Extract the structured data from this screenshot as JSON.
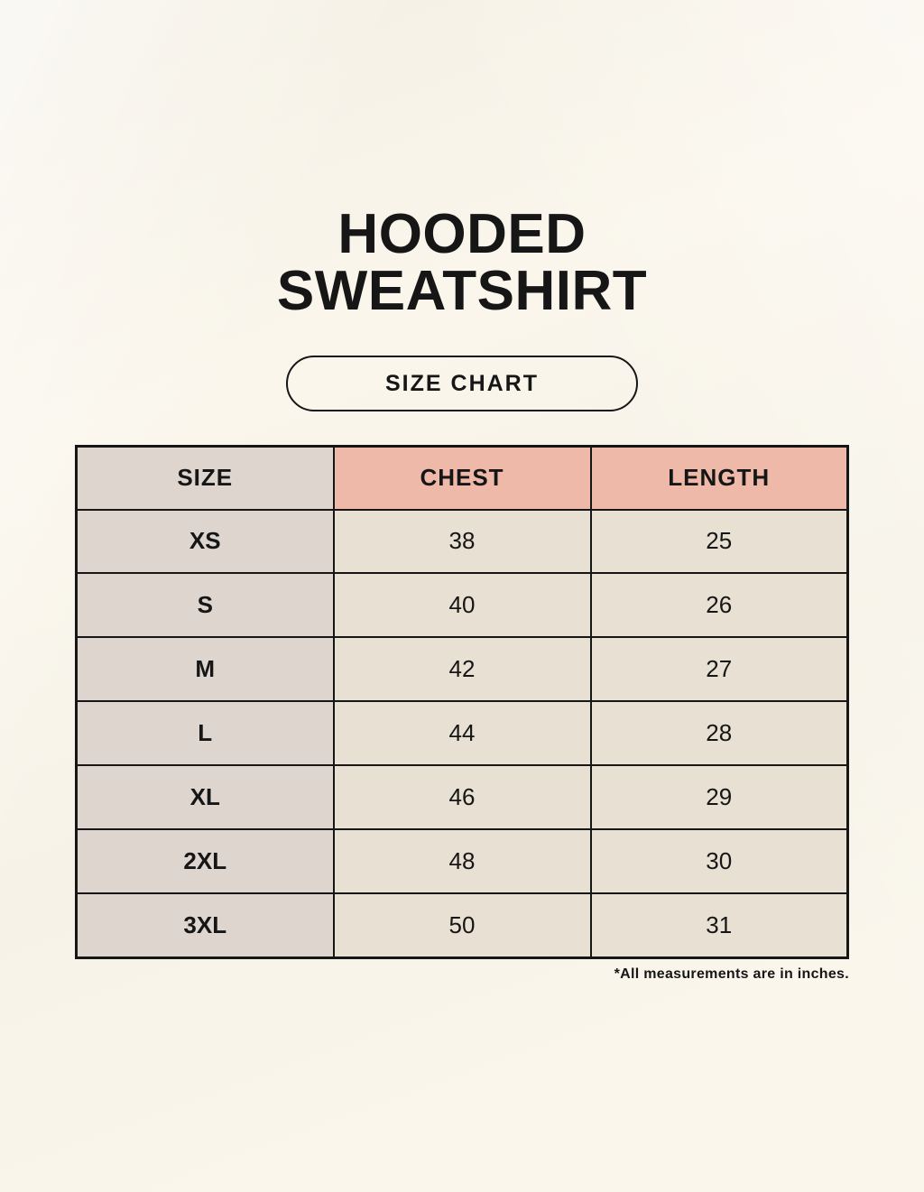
{
  "header": {
    "title_line1": "HOODED",
    "title_line2": "SWEATSHIRT",
    "size_chart_button_label": "SIZE CHART"
  },
  "chart_data": {
    "type": "table",
    "title": "HOODED SWEATSHIRT SIZE CHART",
    "columns": [
      "SIZE",
      "CHEST",
      "LENGTH"
    ],
    "rows": [
      [
        "XS",
        "38",
        "25"
      ],
      [
        "S",
        "40",
        "26"
      ],
      [
        "M",
        "42",
        "27"
      ],
      [
        "L",
        "44",
        "28"
      ],
      [
        "XL",
        "46",
        "29"
      ],
      [
        "2XL",
        "48",
        "30"
      ],
      [
        "3XL",
        "50",
        "31"
      ]
    ],
    "units": "inches"
  },
  "footnote": "*All measurements are in inches.",
  "colors": {
    "page_background": "#faf6ec",
    "size_column_bg": "#ddd5ce",
    "header_accent_bg": "#eeb9a8",
    "data_cell_bg": "#e8e0d3",
    "border": "#161616",
    "text": "#161616"
  }
}
